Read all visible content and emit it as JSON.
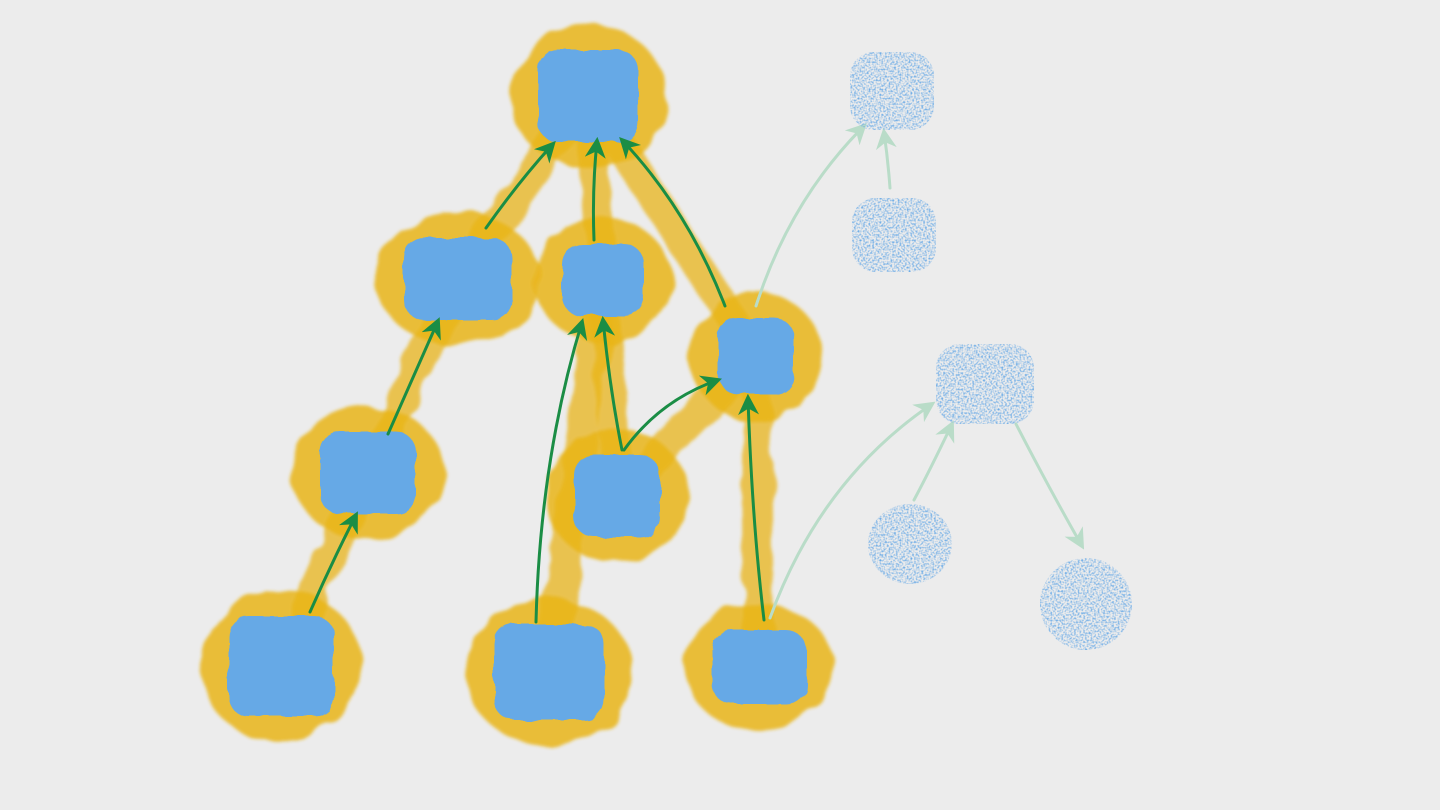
{
  "diagram": {
    "kind": "directed graph (watercolor sketch)",
    "colors": {
      "background": "#ececec",
      "node_fill": "#66a9e6",
      "highlight": "#e9b51a",
      "edge_active": "#1a8d45",
      "edge_faded": "#b9dcc8",
      "node_faded": "#6aaae6"
    },
    "active_nodes": [
      "root",
      "b1",
      "b2",
      "b3",
      "c1",
      "c2",
      "l1",
      "l2",
      "l3"
    ],
    "faded_nodes": [
      "f1",
      "f2",
      "f3",
      "f4",
      "f5"
    ],
    "edges_active": [
      [
        "b1",
        "root"
      ],
      [
        "b2",
        "root"
      ],
      [
        "b3",
        "root"
      ],
      [
        "c1",
        "b1"
      ],
      [
        "l1",
        "c1"
      ],
      [
        "l2",
        "b2"
      ],
      [
        "c2",
        "b2"
      ],
      [
        "c2",
        "b3"
      ],
      [
        "l3",
        "b3"
      ]
    ],
    "edges_faded": [
      [
        "b3",
        "f1"
      ],
      [
        "f2",
        "f1"
      ],
      [
        "l3",
        "f3"
      ],
      [
        "f4",
        "f3"
      ],
      [
        "f3",
        "f5"
      ]
    ]
  }
}
